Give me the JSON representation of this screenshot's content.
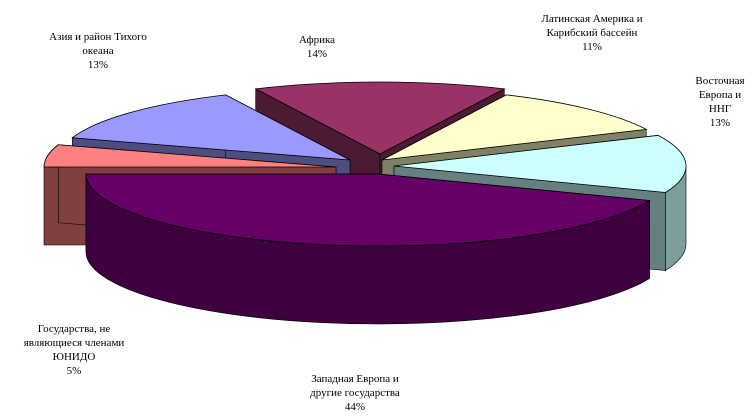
{
  "chart_data": {
    "type": "pie",
    "style": "3d-exploded",
    "slices": [
      {
        "label": "Африка",
        "value": 14,
        "color": "#993366"
      },
      {
        "label": "Латинская  Америка и Карибский бассейн",
        "value": 11,
        "color": "#ffffcc"
      },
      {
        "label": "Восточная Европа и ННГ",
        "value": 13,
        "color": "#ccffff"
      },
      {
        "label": "Западная Европа и другие государства",
        "value": 44,
        "color": "#660066"
      },
      {
        "label": "Государства, не являющиеся членами ЮНИДО",
        "value": 5,
        "color": "#ff8080"
      },
      {
        "label": "Азия и район Тихого океана",
        "value": 13,
        "color": "#9999ff"
      }
    ],
    "labels": {
      "africa": {
        "line1": "Африка",
        "pct": "14%"
      },
      "latam": {
        "line1": "Латинская  Америка и",
        "line2": "Карибский бассейн",
        "pct": "11%"
      },
      "eeurope": {
        "line1": "Восточная",
        "line2": "Европа и",
        "line3": "ННГ",
        "pct": "13%"
      },
      "weurope": {
        "line1": "Западная Европа и",
        "line2": "другие государства",
        "pct": "44%"
      },
      "nonmember": {
        "line1": "Государства, не",
        "line2": "являющиеся членами",
        "line3": "ЮНИДО",
        "pct": "5%"
      },
      "asia": {
        "line1": "Азия и район Тихого",
        "line2": "океана",
        "pct": "13%"
      }
    }
  }
}
